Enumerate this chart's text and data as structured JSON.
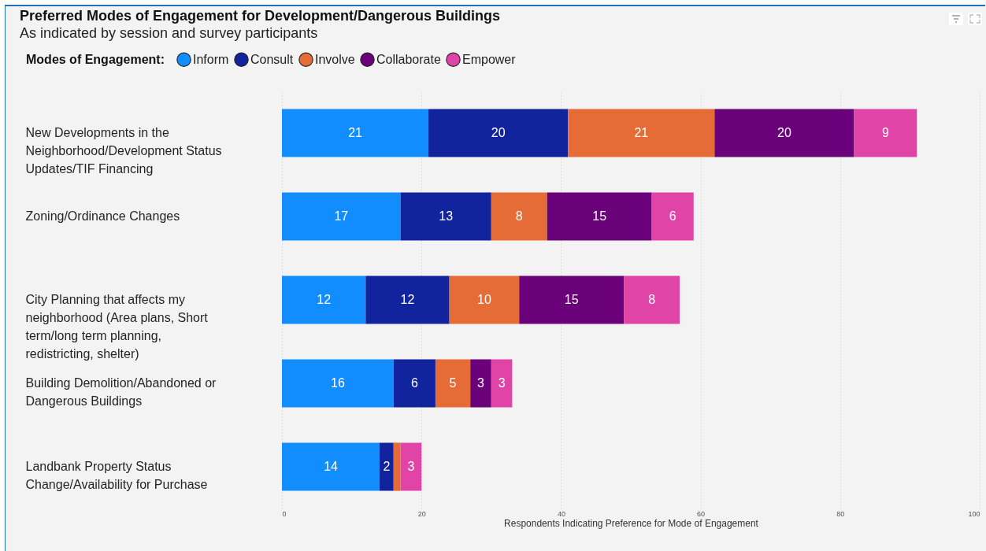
{
  "chart_data": {
    "type": "bar",
    "orientation": "horizontal",
    "stacked": true,
    "title": "Preferred Modes of Engagement for Development/Dangerous Buildings",
    "subtitle": "As indicated by session and survey participants",
    "legend_title": "Modes of Engagement:",
    "xlabel": "Respondents Indicating Preference for Mode of Engagement",
    "categories": [
      "New Developments in the Neighborhood/Development Status Updates/TIF Financing",
      "Zoning/Ordinance Changes",
      "City Planning that affects my neighborhood (Area plans, Short term/long term planning, redistricting, shelter)",
      "Building Demolition/Abandoned or Dangerous Buildings",
      "Landbank Property Status Change/Availability for Purchase"
    ],
    "series": [
      {
        "name": "Inform",
        "color": "#118dff",
        "values": [
          21,
          17,
          12,
          16,
          14
        ],
        "value_labels": [
          "21",
          "17",
          "12",
          "16",
          "14"
        ]
      },
      {
        "name": "Consult",
        "color": "#12239e",
        "values": [
          20,
          13,
          12,
          6,
          2
        ],
        "value_labels": [
          "20",
          "13",
          "12",
          "6",
          "2"
        ]
      },
      {
        "name": "Involve",
        "color": "#e66c37",
        "values": [
          21,
          8,
          10,
          5,
          1
        ],
        "value_labels": [
          "21",
          "8",
          "10",
          "5",
          null
        ]
      },
      {
        "name": "Collaborate",
        "color": "#6b007b",
        "values": [
          20,
          15,
          15,
          3,
          0
        ],
        "value_labels": [
          "20",
          "15",
          "15",
          "3",
          null
        ]
      },
      {
        "name": "Empower",
        "color": "#e044a7",
        "values": [
          9,
          6,
          8,
          3,
          3
        ],
        "value_labels": [
          "9",
          "6",
          "8",
          "3",
          "3"
        ]
      }
    ],
    "xlim": [
      0,
      100
    ],
    "xticks": [
      0,
      20,
      40,
      60,
      80,
      100
    ],
    "grid": "x",
    "legend": "top left"
  }
}
